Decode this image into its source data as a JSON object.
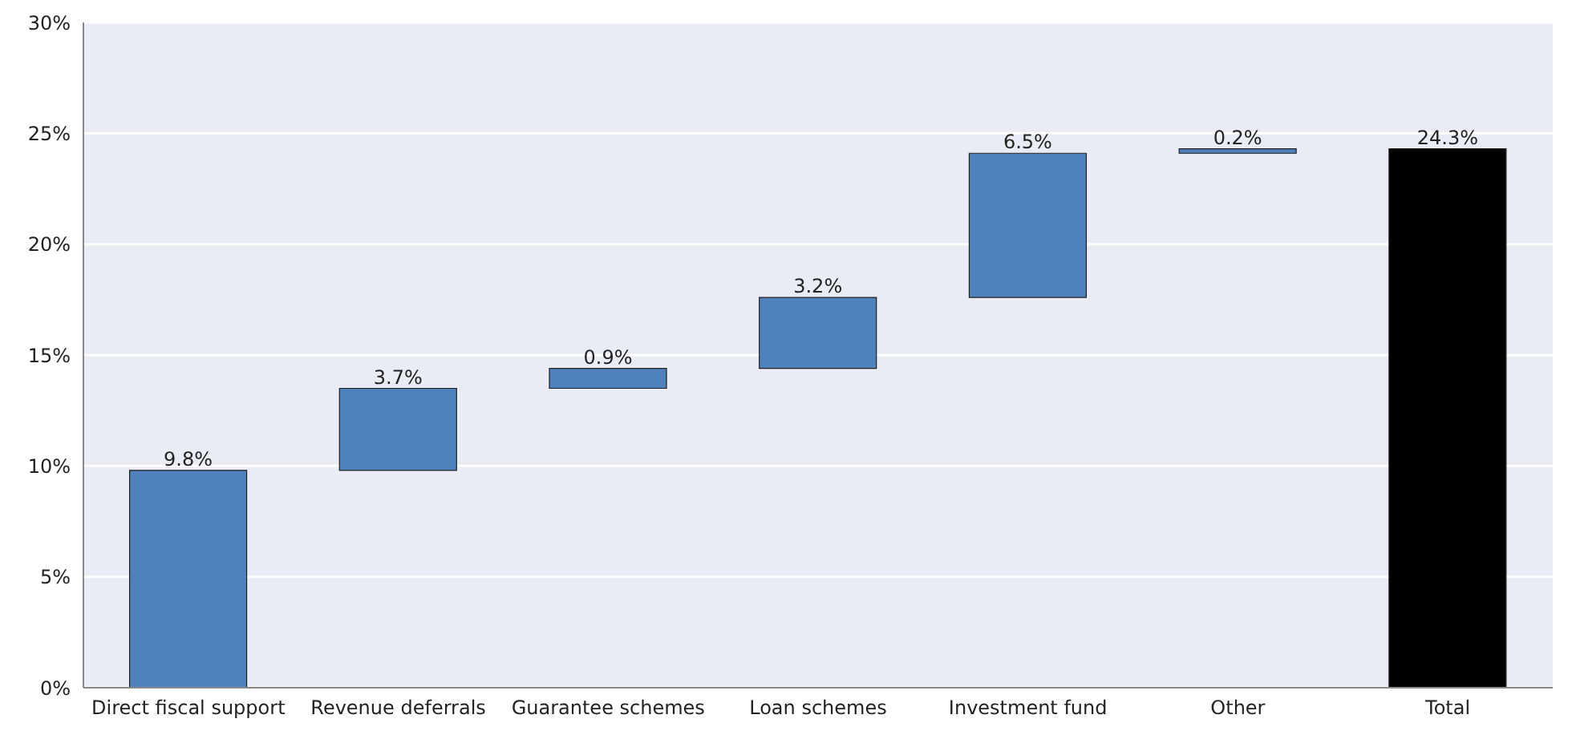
{
  "chart_data": {
    "type": "bar",
    "categories": [
      "Direct fiscal support",
      "Revenue deferrals",
      "Guarantee schemes",
      "Loan schemes",
      "Investment fund",
      "Other",
      "Total"
    ],
    "values": [
      9.8,
      3.7,
      0.9,
      3.2,
      6.5,
      0.2,
      24.3
    ],
    "base": [
      0,
      9.8,
      13.5,
      14.4,
      17.6,
      24.1,
      0
    ],
    "colors": [
      "#4f81bd",
      "#4f81bd",
      "#4f81bd",
      "#4f81bd",
      "#4f81bd",
      "#4f81bd",
      "#000000"
    ],
    "value_labels": [
      "9.8%",
      "3.7%",
      "0.9%",
      "3.2%",
      "6.5%",
      "0.2%",
      "24.3%"
    ],
    "ylim": [
      0,
      30
    ],
    "yticks": [
      {
        "value": 0,
        "label": "0%"
      },
      {
        "value": 5,
        "label": "5%"
      },
      {
        "value": 10,
        "label": "10%"
      },
      {
        "value": 15,
        "label": "15%"
      },
      {
        "value": 20,
        "label": "20%"
      },
      {
        "value": 25,
        "label": "25%"
      },
      {
        "value": 30,
        "label": "30%"
      }
    ],
    "grid": "y"
  }
}
